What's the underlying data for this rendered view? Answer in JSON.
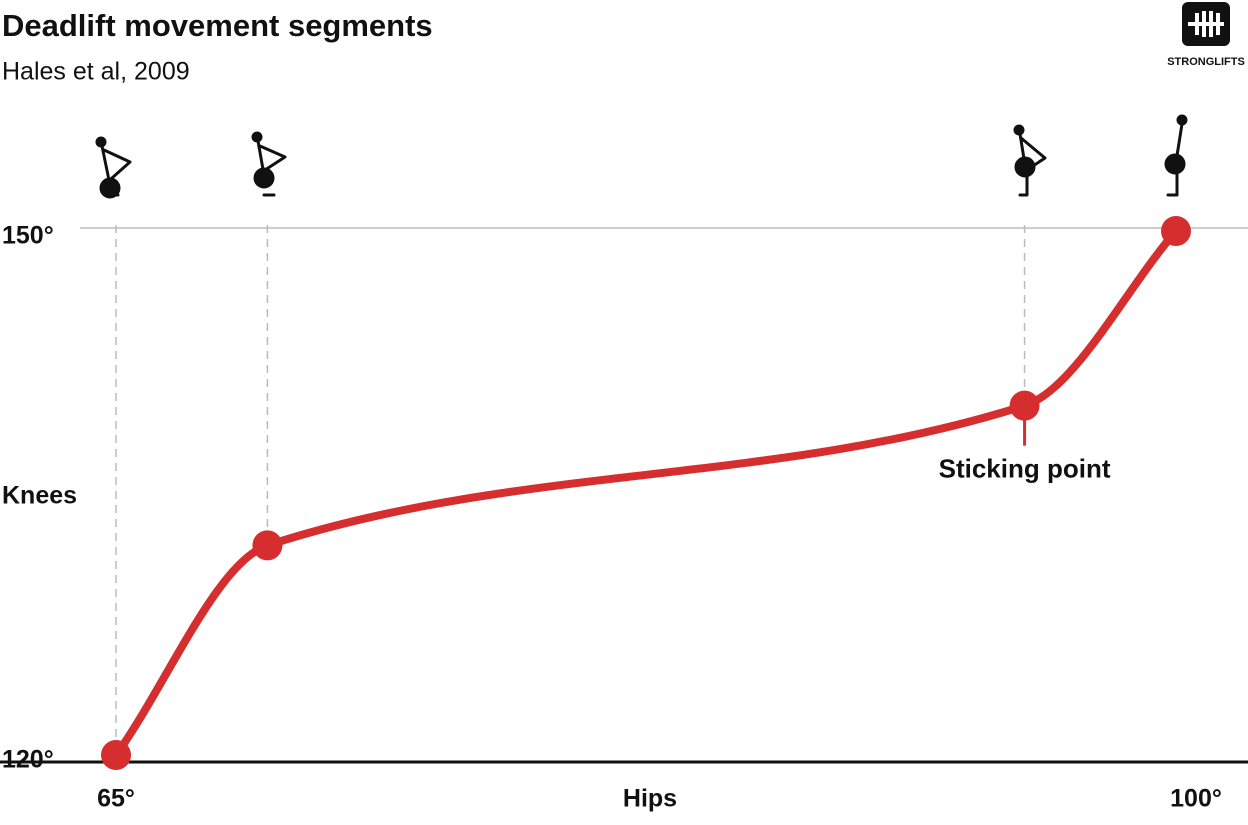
{
  "chart_data": {
    "type": "line",
    "title": "Deadlift movement segments",
    "subtitle": "Hales et al, 2009",
    "x_label": "Hips",
    "y_label": "Knees",
    "x": [
      65,
      70,
      95,
      100
    ],
    "series": [
      {
        "color": "#d62e2e",
        "values": [
          120,
          132,
          140,
          150
        ]
      }
    ],
    "xlim": [
      65,
      100
    ],
    "ylim": [
      120,
      150
    ],
    "xticks": [
      {
        "value": 65,
        "label": "65°"
      },
      {
        "value": 100,
        "label": "100°"
      }
    ],
    "yticks": [
      {
        "value": 120,
        "label": "120°"
      },
      {
        "value": 150,
        "label": "150°"
      }
    ],
    "annotations": [
      {
        "text": "Sticking point",
        "x": 95,
        "y": 140
      }
    ]
  },
  "logo": "STRONGLIFTS"
}
